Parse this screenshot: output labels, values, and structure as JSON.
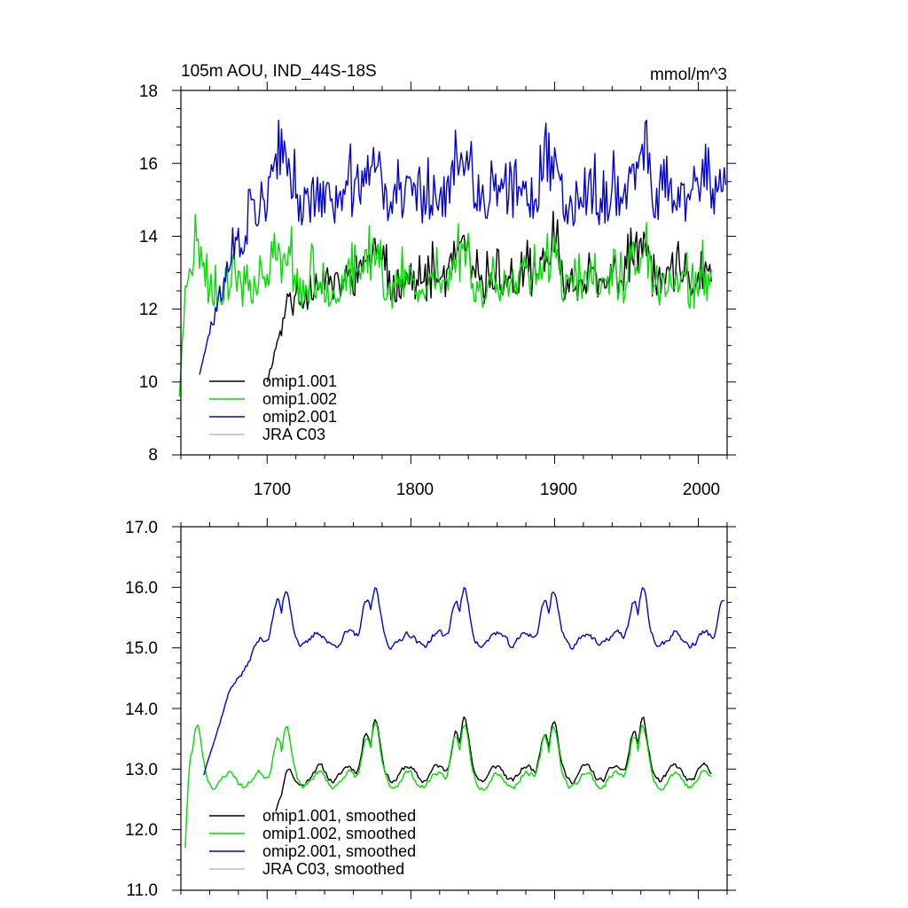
{
  "chart_data": [
    {
      "type": "line",
      "title": "105m AOU, IND_44S-18S",
      "units": "mmol/m^3",
      "xlim": [
        1640,
        2020
      ],
      "ylim": [
        8,
        18
      ],
      "xticks": [
        1700,
        1800,
        1900,
        2000
      ],
      "xtick_labels": [
        "1700",
        "1800",
        "1900",
        "2000"
      ],
      "yticks": [
        8,
        10,
        12,
        14,
        16,
        18
      ],
      "ytick_labels": [
        "8",
        "10",
        "12",
        "14",
        "16",
        "18"
      ],
      "legend_position": "bottom-left",
      "series": [
        {
          "name": "omip1.001",
          "color": "#000000",
          "start": 1700,
          "end": 2009,
          "level": 12.9,
          "amp": 0.55,
          "ramp_from": 10.0,
          "ramp_years": 40,
          "noise": 0.45,
          "seed": 11
        },
        {
          "name": "omip1.002",
          "color": "#00dd00",
          "start": 1639,
          "end": 2009,
          "level": 12.8,
          "amp": 0.6,
          "ramp_from": 9.6,
          "ramp_years": 8,
          "noise": 0.5,
          "seed": 23
        },
        {
          "name": "omip2.001",
          "color": "#0000dd",
          "start": 1653,
          "end": 2019,
          "level": 15.2,
          "amp": 0.6,
          "ramp_from": 10.2,
          "ramp_years": 55,
          "noise": 0.6,
          "seed": 37
        },
        {
          "name": "JRA C03",
          "color": "#bbbbbb",
          "start": null,
          "end": null
        }
      ]
    },
    {
      "type": "line",
      "title": "",
      "xlim": [
        1640,
        2020
      ],
      "ylim": [
        11.0,
        17.0
      ],
      "xticks": [
        1700,
        1800,
        1900,
        2000
      ],
      "yticks": [
        11.0,
        12.0,
        13.0,
        14.0,
        15.0,
        16.0,
        17.0
      ],
      "ytick_labels": [
        "11.0",
        "12.0",
        "13.0",
        "14.0",
        "15.0",
        "16.0",
        "17.0"
      ],
      "legend_position": "bottom-left",
      "series": [
        {
          "name": "omip1.001, smoothed",
          "color": "#000000",
          "start": 1706,
          "end": 2009,
          "level": 13.1,
          "amp": 0.55,
          "ramp_from": 12.3,
          "ramp_years": 30,
          "noise": 0.1,
          "seed": 11
        },
        {
          "name": "omip1.002, smoothed",
          "color": "#00dd00",
          "start": 1643,
          "end": 2009,
          "level": 13.0,
          "amp": 0.55,
          "ramp_from": 11.7,
          "ramp_years": 6,
          "noise": 0.1,
          "seed": 23
        },
        {
          "name": "omip2.001, smoothed",
          "color": "#0000dd",
          "start": 1656,
          "end": 2018,
          "level": 15.3,
          "amp": 0.5,
          "ramp_from": 12.9,
          "ramp_years": 50,
          "noise": 0.12,
          "seed": 37
        },
        {
          "name": "JRA C03, smoothed",
          "color": "#bbbbbb",
          "start": null,
          "end": null
        }
      ]
    }
  ]
}
